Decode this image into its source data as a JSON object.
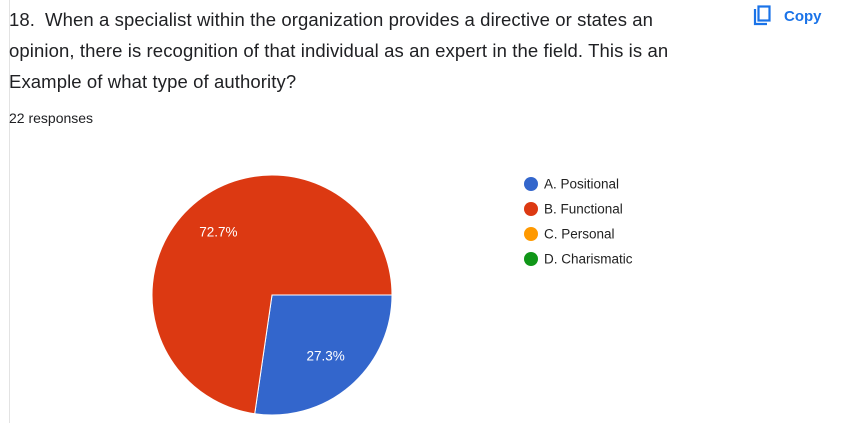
{
  "question_number": "18.",
  "copy_button": "Copy",
  "chart_data": {
    "type": "pie",
    "title": "When a specialist within the organization provides a directive or states an opinion, there is recognition of that individual as an expert in the field. This is an Example of what type of authority?",
    "subtitle": "22 responses",
    "categories": [
      "A. Positional",
      "B. Functional",
      "C. Personal",
      "D. Charismatic"
    ],
    "values": [
      27.3,
      72.7,
      0,
      0
    ],
    "value_labels": [
      "27.3%",
      "72.7%",
      null,
      null
    ],
    "colors": [
      "#3366cc",
      "#dc3912",
      "#ff9900",
      "#109618"
    ],
    "legend": "right"
  }
}
